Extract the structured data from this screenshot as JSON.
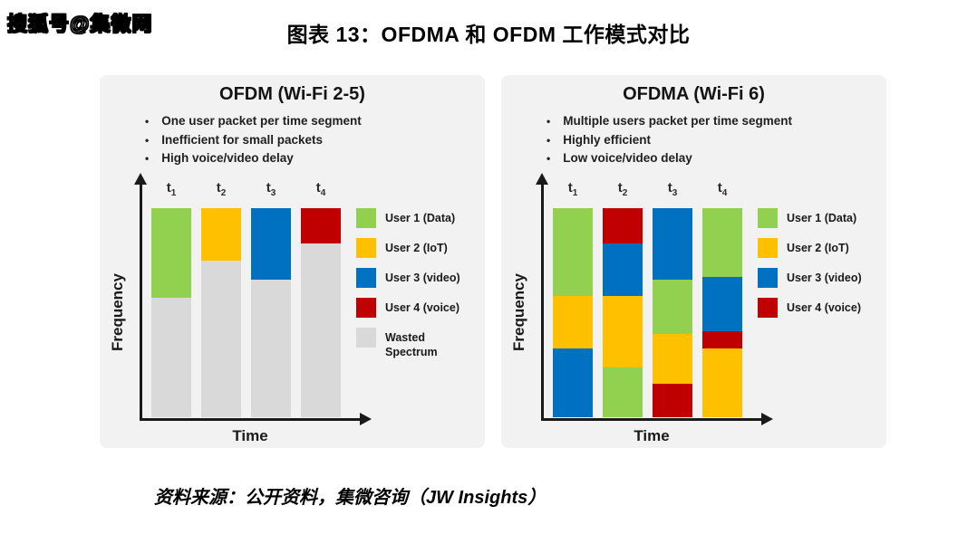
{
  "watermark": "搜狐号@集微网",
  "title": "图表 13：OFDMA 和 OFDM 工作模式对比",
  "source": "资料来源：公开资料，集微咨询（JW Insights）",
  "palette": {
    "user1_green": "#92d050",
    "user2_yellow": "#ffc000",
    "user3_blue": "#0070c0",
    "user4_red": "#c00000",
    "wasted_gray": "#d9d9d9",
    "panel_background": "#f2f2f2",
    "axis_black": "#1a1a1a"
  },
  "chart_data": [
    {
      "type": "bar",
      "stacked": true,
      "title": "OFDM (Wi-Fi 2-5)",
      "bullets": [
        "One user packet per time segment",
        "Inefficient for small packets",
        "High voice/video delay"
      ],
      "xlabel": "Time",
      "ylabel": "Frequency",
      "categories": [
        "t1",
        "t2",
        "t3",
        "t4"
      ],
      "unit": "percent of frequency band, segments listed top to bottom",
      "bars": [
        {
          "label": "t1",
          "segments": [
            {
              "name": "User 1 (Data)",
              "color": "#92d050",
              "pct": 43
            },
            {
              "name": "Wasted Spectrum",
              "color": "#d9d9d9",
              "pct": 57
            }
          ]
        },
        {
          "label": "t2",
          "segments": [
            {
              "name": "User 2 (IoT)",
              "color": "#ffc000",
              "pct": 25
            },
            {
              "name": "Wasted Spectrum",
              "color": "#d9d9d9",
              "pct": 75
            }
          ]
        },
        {
          "label": "t3",
          "segments": [
            {
              "name": "User 3 (video)",
              "color": "#0070c0",
              "pct": 34
            },
            {
              "name": "Wasted Spectrum",
              "color": "#d9d9d9",
              "pct": 66
            }
          ]
        },
        {
          "label": "t4",
          "segments": [
            {
              "name": "User 4 (voice)",
              "color": "#c00000",
              "pct": 17
            },
            {
              "name": "Wasted Spectrum",
              "color": "#d9d9d9",
              "pct": 83
            }
          ]
        }
      ],
      "legend": [
        {
          "label": "User 1 (Data)",
          "color": "#92d050"
        },
        {
          "label": "User 2 (IoT)",
          "color": "#ffc000"
        },
        {
          "label": "User 3 (video)",
          "color": "#0070c0"
        },
        {
          "label": "User 4 (voice)",
          "color": "#c00000"
        },
        {
          "label": "Wasted Spectrum",
          "color": "#d9d9d9"
        }
      ],
      "legend_position": "right",
      "grid": false
    },
    {
      "type": "bar",
      "stacked": true,
      "title": "OFDMA (Wi-Fi 6)",
      "bullets": [
        "Multiple users packet per time segment",
        "Highly efficient",
        "Low voice/video delay"
      ],
      "xlabel": "Time",
      "ylabel": "Frequency",
      "categories": [
        "t1",
        "t2",
        "t3",
        "t4"
      ],
      "unit": "percent of frequency band, segments listed top to bottom",
      "bars": [
        {
          "label": "t1",
          "segments": [
            {
              "name": "User 1 (Data)",
              "color": "#92d050",
              "pct": 42
            },
            {
              "name": "User 2 (IoT)",
              "color": "#ffc000",
              "pct": 25
            },
            {
              "name": "User 3 (video)",
              "color": "#0070c0",
              "pct": 33
            }
          ]
        },
        {
          "label": "t2",
          "segments": [
            {
              "name": "User 4 (voice)",
              "color": "#c00000",
              "pct": 17
            },
            {
              "name": "User 3 (video)",
              "color": "#0070c0",
              "pct": 25
            },
            {
              "name": "User 2 (IoT)",
              "color": "#ffc000",
              "pct": 34
            },
            {
              "name": "User 1 (Data)",
              "color": "#92d050",
              "pct": 24
            }
          ]
        },
        {
          "label": "t3",
          "segments": [
            {
              "name": "User 3 (video)",
              "color": "#0070c0",
              "pct": 34
            },
            {
              "name": "User 1 (Data)",
              "color": "#92d050",
              "pct": 26
            },
            {
              "name": "User 2 (IoT)",
              "color": "#ffc000",
              "pct": 24
            },
            {
              "name": "User 4 (voice)",
              "color": "#c00000",
              "pct": 16
            }
          ]
        },
        {
          "label": "t4",
          "segments": [
            {
              "name": "User 1 (Data)",
              "color": "#92d050",
              "pct": 33
            },
            {
              "name": "User 3 (video)",
              "color": "#0070c0",
              "pct": 26
            },
            {
              "name": "User 4 (voice)",
              "color": "#c00000",
              "pct": 8
            },
            {
              "name": "User 2 (IoT)",
              "color": "#ffc000",
              "pct": 33
            }
          ]
        }
      ],
      "legend": [
        {
          "label": "User 1 (Data)",
          "color": "#92d050"
        },
        {
          "label": "User 2 (IoT)",
          "color": "#ffc000"
        },
        {
          "label": "User 3 (video)",
          "color": "#0070c0"
        },
        {
          "label": "User 4 (voice)",
          "color": "#c00000"
        }
      ],
      "legend_position": "right",
      "grid": false
    }
  ]
}
